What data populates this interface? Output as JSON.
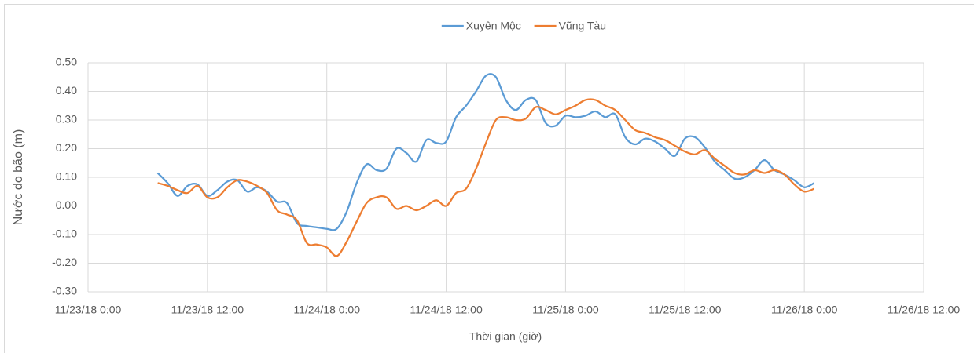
{
  "chart_data": {
    "type": "line",
    "x_label": "Thời gian (giờ)",
    "y_label": "Nước do bão (m)",
    "legend": "top",
    "grid": true,
    "ylim": [
      -0.3,
      0.5
    ],
    "yticks": [
      {
        "value": -0.3,
        "label": "-0.30"
      },
      {
        "value": -0.2,
        "label": "-0.20"
      },
      {
        "value": -0.1,
        "label": "-0.10"
      },
      {
        "value": 0,
        "label": "0.00"
      },
      {
        "value": 0.1,
        "label": "0.10"
      },
      {
        "value": 0.2,
        "label": "0.20"
      },
      {
        "value": 0.3,
        "label": "0.30"
      },
      {
        "value": 0.4,
        "label": "0.40"
      },
      {
        "value": 0.5,
        "label": "0.50"
      }
    ],
    "xlim": [
      "2018-11-23T00:00",
      "2018-11-26T12:00"
    ],
    "xticks": [
      {
        "value": "2018-11-23T00:00",
        "label": "11/23/18 0:00"
      },
      {
        "value": "2018-11-23T12:00",
        "label": "11/23/18 12:00"
      },
      {
        "value": "2018-11-24T00:00",
        "label": "11/24/18 0:00"
      },
      {
        "value": "2018-11-24T12:00",
        "label": "11/24/18 12:00"
      },
      {
        "value": "2018-11-25T00:00",
        "label": "11/25/18 0:00"
      },
      {
        "value": "2018-11-25T12:00",
        "label": "11/25/18 12:00"
      },
      {
        "value": "2018-11-26T00:00",
        "label": "11/26/18 0:00"
      },
      {
        "value": "2018-11-26T12:00",
        "label": "11/26/18 12:00"
      }
    ],
    "x": [
      "2018-11-23T07:00",
      "2018-11-23T08:00",
      "2018-11-23T09:00",
      "2018-11-23T10:00",
      "2018-11-23T11:00",
      "2018-11-23T12:00",
      "2018-11-23T13:00",
      "2018-11-23T14:00",
      "2018-11-23T15:00",
      "2018-11-23T16:00",
      "2018-11-23T17:00",
      "2018-11-23T18:00",
      "2018-11-23T19:00",
      "2018-11-23T20:00",
      "2018-11-23T21:00",
      "2018-11-23T22:00",
      "2018-11-23T23:00",
      "2018-11-24T00:00",
      "2018-11-24T01:00",
      "2018-11-24T02:00",
      "2018-11-24T03:00",
      "2018-11-24T04:00",
      "2018-11-24T05:00",
      "2018-11-24T06:00",
      "2018-11-24T07:00",
      "2018-11-24T08:00",
      "2018-11-24T09:00",
      "2018-11-24T10:00",
      "2018-11-24T11:00",
      "2018-11-24T12:00",
      "2018-11-24T13:00",
      "2018-11-24T14:00",
      "2018-11-24T15:00",
      "2018-11-24T16:00",
      "2018-11-24T17:00",
      "2018-11-24T18:00",
      "2018-11-24T19:00",
      "2018-11-24T20:00",
      "2018-11-24T21:00",
      "2018-11-24T22:00",
      "2018-11-24T23:00",
      "2018-11-25T00:00",
      "2018-11-25T01:00",
      "2018-11-25T02:00",
      "2018-11-25T03:00",
      "2018-11-25T04:00",
      "2018-11-25T05:00",
      "2018-11-25T06:00",
      "2018-11-25T07:00",
      "2018-11-25T08:00",
      "2018-11-25T09:00",
      "2018-11-25T10:00",
      "2018-11-25T11:00",
      "2018-11-25T12:00",
      "2018-11-25T13:00",
      "2018-11-25T14:00",
      "2018-11-25T15:00",
      "2018-11-25T16:00",
      "2018-11-25T17:00",
      "2018-11-25T18:00",
      "2018-11-25T19:00",
      "2018-11-25T20:00",
      "2018-11-25T21:00",
      "2018-11-25T22:00",
      "2018-11-25T23:00",
      "2018-11-26T00:00",
      "2018-11-26T01:00"
    ],
    "series": [
      {
        "name": "Xuyên Mộc",
        "color": "#5b9bd5",
        "values": [
          0.115,
          0.08,
          0.035,
          0.07,
          0.075,
          0.035,
          0.055,
          0.085,
          0.09,
          0.05,
          0.065,
          0.05,
          0.015,
          0.01,
          -0.06,
          -0.07,
          -0.075,
          -0.08,
          -0.08,
          -0.02,
          0.08,
          0.145,
          0.125,
          0.13,
          0.2,
          0.185,
          0.155,
          0.23,
          0.22,
          0.225,
          0.31,
          0.35,
          0.4,
          0.455,
          0.45,
          0.37,
          0.335,
          0.37,
          0.37,
          0.29,
          0.28,
          0.315,
          0.31,
          0.315,
          0.33,
          0.31,
          0.32,
          0.24,
          0.215,
          0.235,
          0.225,
          0.2,
          0.175,
          0.235,
          0.24,
          0.205,
          0.155,
          0.125,
          0.095,
          0.1,
          0.125,
          0.16,
          0.125,
          0.11,
          0.09,
          0.065,
          0.08
        ]
      },
      {
        "name": "Vũng Tàu",
        "color": "#ed7d31",
        "values": [
          0.08,
          0.07,
          0.055,
          0.045,
          0.07,
          0.03,
          0.03,
          0.065,
          0.09,
          0.085,
          0.07,
          0.045,
          -0.015,
          -0.03,
          -0.05,
          -0.13,
          -0.135,
          -0.145,
          -0.175,
          -0.125,
          -0.055,
          0.01,
          0.03,
          0.03,
          -0.01,
          0,
          -0.015,
          0,
          0.02,
          0,
          0.045,
          0.06,
          0.13,
          0.22,
          0.3,
          0.31,
          0.3,
          0.305,
          0.345,
          0.335,
          0.32,
          0.335,
          0.35,
          0.37,
          0.37,
          0.35,
          0.335,
          0.3,
          0.265,
          0.255,
          0.24,
          0.23,
          0.21,
          0.19,
          0.18,
          0.195,
          0.165,
          0.14,
          0.115,
          0.11,
          0.125,
          0.115,
          0.125,
          0.11,
          0.075,
          0.05,
          0.06
        ]
      }
    ]
  }
}
